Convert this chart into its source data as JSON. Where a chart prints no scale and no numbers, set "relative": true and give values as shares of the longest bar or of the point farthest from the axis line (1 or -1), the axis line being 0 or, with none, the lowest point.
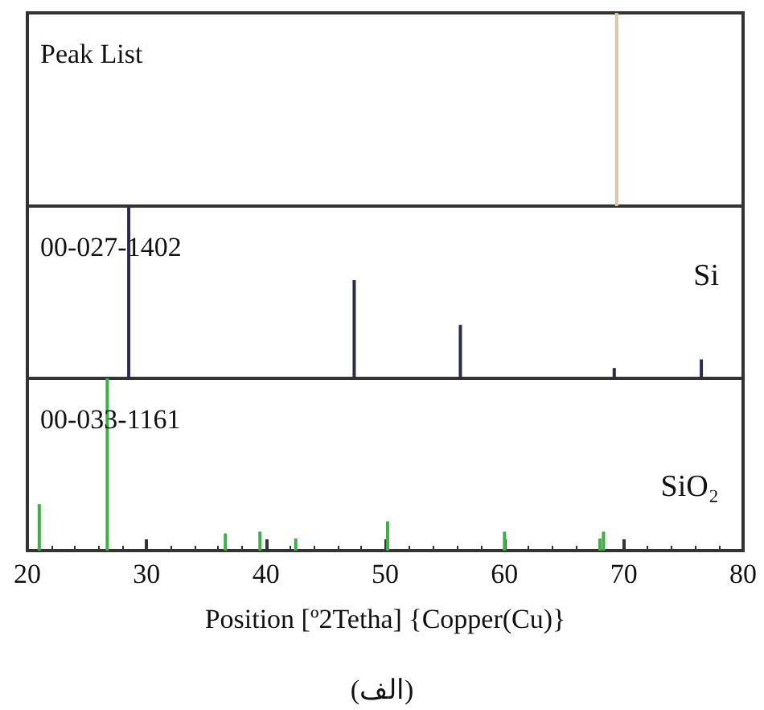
{
  "chart_data": [
    {
      "type": "bar",
      "title": "Peak List",
      "relative": true,
      "xlim": [
        20,
        80
      ],
      "tick_labels": false,
      "series": [
        {
          "color": "#d6c7ad",
          "x": [
            69.4
          ],
          "values": [
            1
          ]
        }
      ]
    },
    {
      "type": "bar",
      "title": "00-027-1402",
      "annotations": [
        "Si"
      ],
      "relative": true,
      "xlim": [
        20,
        80
      ],
      "tick_labels": false,
      "series": [
        {
          "color": "#2b2b4a",
          "x": [
            28.5,
            47.4,
            56.3,
            69.2,
            76.5
          ],
          "values": [
            1,
            0.57,
            0.31,
            0.06,
            0.11
          ]
        }
      ]
    },
    {
      "type": "bar",
      "title": "00-033-1161",
      "annotations": [
        "SiO₂",
        "(الف)"
      ],
      "xlabel": "Position [º2Tetha] {Copper(Cu)}",
      "relative": true,
      "xlim": [
        20,
        80
      ],
      "xticks": [
        20,
        30,
        40,
        50,
        60,
        70,
        80
      ],
      "tick_labels": "x",
      "series": [
        {
          "color": "#3cb043",
          "x": [
            21.0,
            26.7,
            36.6,
            39.5,
            42.5,
            50.2,
            60.0,
            68.0,
            68.3
          ],
          "values": [
            0.27,
            1,
            0.1,
            0.11,
            0.07,
            0.17,
            0.11,
            0.07,
            0.11
          ]
        }
      ]
    }
  ]
}
